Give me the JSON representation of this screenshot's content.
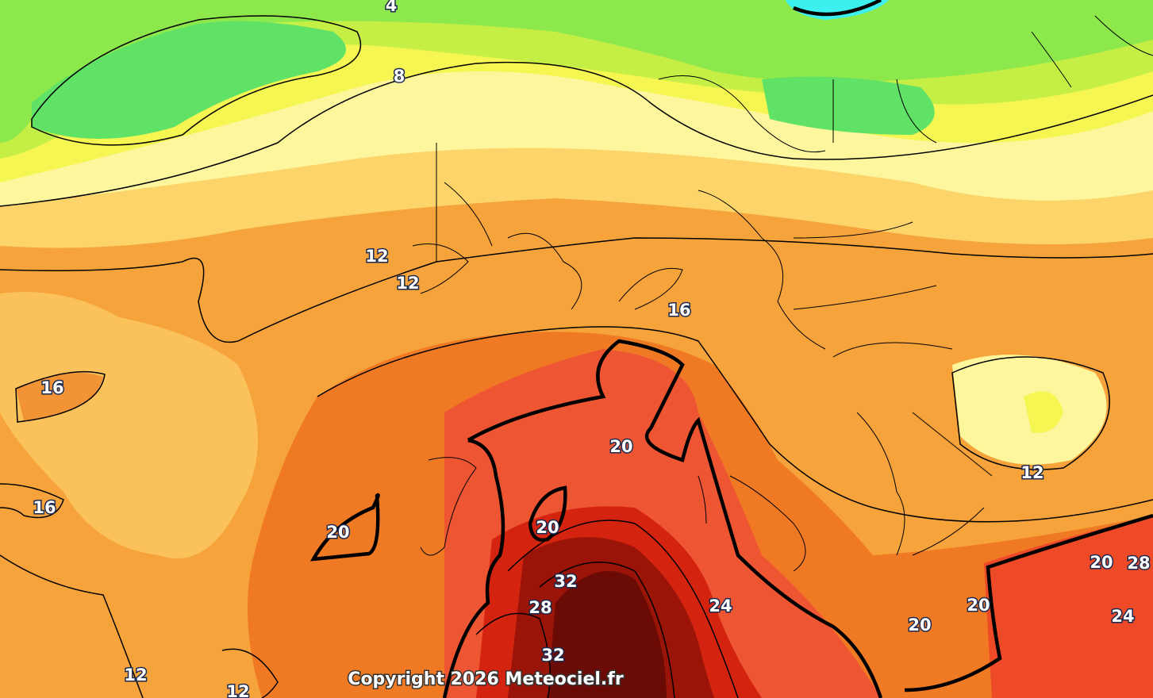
{
  "map": {
    "contour_labels": [
      4,
      8,
      12,
      12,
      16,
      16,
      16,
      20,
      20,
      20,
      32,
      28,
      24,
      32,
      20,
      20,
      20,
      28,
      24,
      12,
      12,
      12
    ],
    "copyright": "Copyright 2026 Meteociel.fr"
  }
}
